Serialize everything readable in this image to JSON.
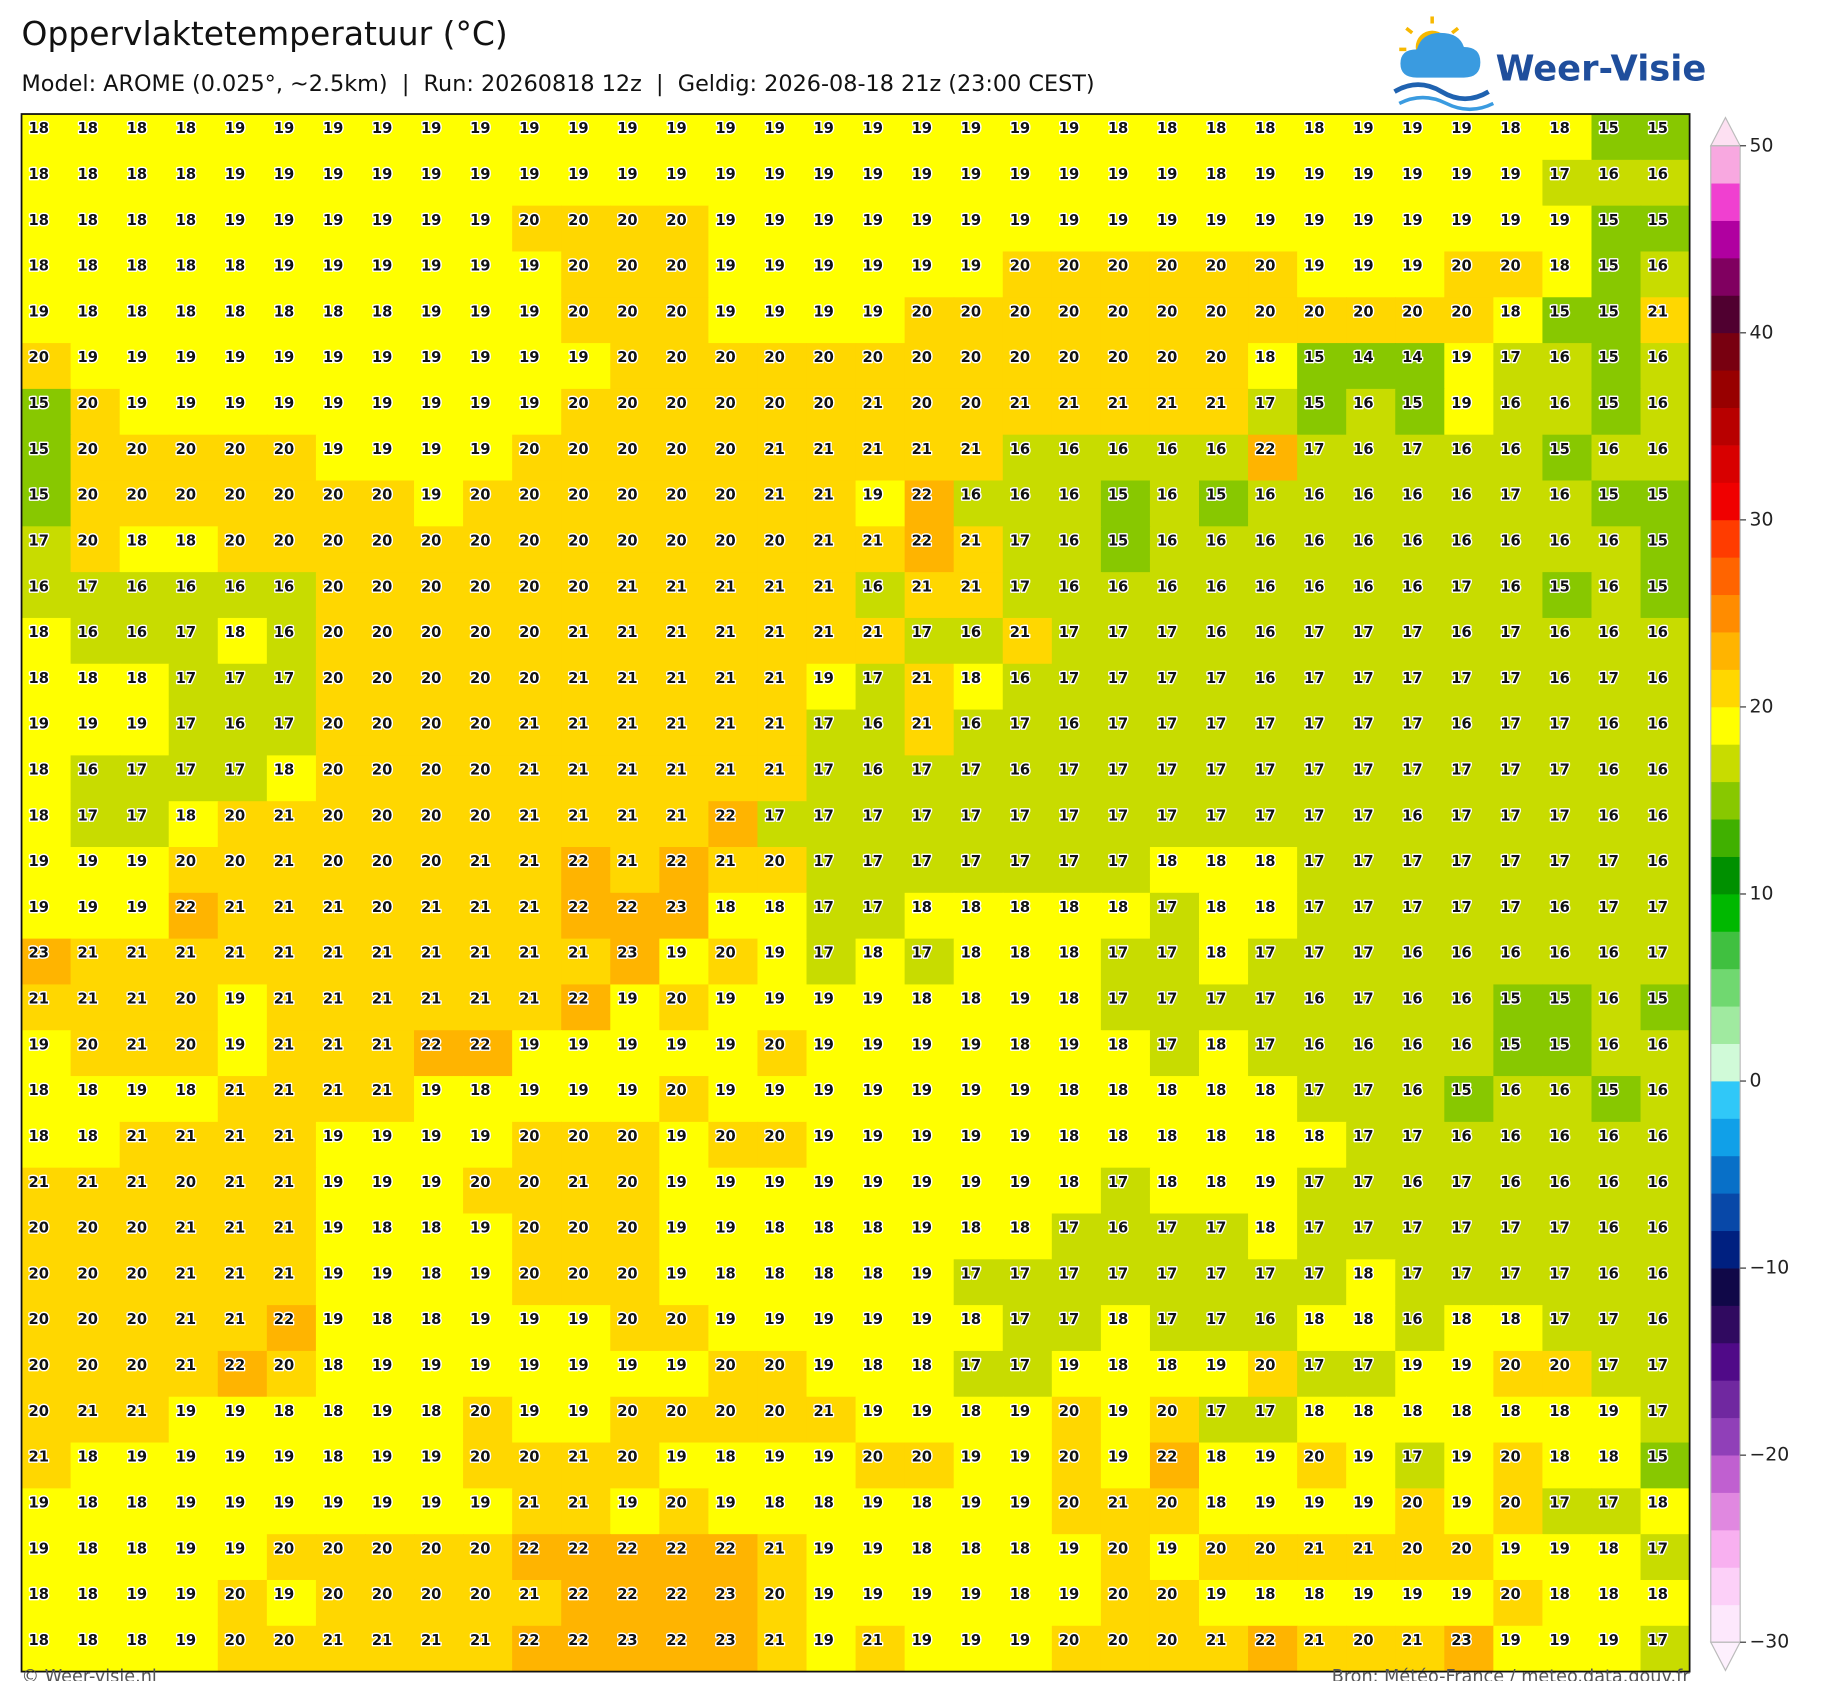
{
  "header": {
    "title": "Oppervlaktetemperatuur (°C)",
    "subtitle": "Model: AROME (0.025°, ~2.5km)  |  Run: 20260818 12z  |  Geldig: 2026-08-18 21z (23:00 CEST)"
  },
  "logo": "Weer-Visie",
  "map": {
    "type": "grid",
    "rows": [
      [
        18,
        18,
        18,
        18,
        19,
        19,
        19,
        19,
        19,
        19,
        19,
        19,
        19,
        19,
        19,
        19,
        19,
        19,
        19,
        19,
        19,
        19,
        18,
        18,
        18,
        18,
        18,
        19,
        19,
        19,
        18,
        18,
        15,
        15
      ],
      [
        18,
        18,
        18,
        18,
        19,
        19,
        19,
        19,
        19,
        19,
        19,
        19,
        19,
        19,
        19,
        19,
        19,
        19,
        19,
        19,
        19,
        19,
        19,
        19,
        18,
        19,
        19,
        19,
        19,
        19,
        19,
        17,
        16,
        16
      ],
      [
        18,
        18,
        18,
        18,
        19,
        19,
        19,
        19,
        19,
        19,
        20,
        20,
        20,
        20,
        19,
        19,
        19,
        19,
        19,
        19,
        19,
        19,
        19,
        19,
        19,
        19,
        19,
        19,
        19,
        19,
        19,
        19,
        15,
        15
      ],
      [
        18,
        18,
        18,
        18,
        18,
        19,
        19,
        19,
        19,
        19,
        19,
        20,
        20,
        20,
        19,
        19,
        19,
        19,
        19,
        19,
        20,
        20,
        20,
        20,
        20,
        20,
        19,
        19,
        19,
        20,
        20,
        18,
        15,
        16
      ],
      [
        19,
        18,
        18,
        18,
        18,
        18,
        18,
        18,
        19,
        19,
        19,
        20,
        20,
        20,
        19,
        19,
        19,
        19,
        20,
        20,
        20,
        20,
        20,
        20,
        20,
        20,
        20,
        20,
        20,
        20,
        18,
        15,
        15,
        21
      ],
      [
        20,
        19,
        19,
        19,
        19,
        19,
        19,
        19,
        19,
        19,
        19,
        19,
        20,
        20,
        20,
        20,
        20,
        20,
        20,
        20,
        20,
        20,
        20,
        20,
        20,
        18,
        15,
        14,
        14,
        19,
        17,
        16,
        15,
        16
      ],
      [
        15,
        20,
        19,
        19,
        19,
        19,
        19,
        19,
        19,
        19,
        19,
        20,
        20,
        20,
        20,
        20,
        20,
        21,
        20,
        20,
        21,
        21,
        21,
        21,
        21,
        17,
        15,
        16,
        15,
        19,
        16,
        16,
        15,
        16
      ],
      [
        15,
        20,
        20,
        20,
        20,
        20,
        19,
        19,
        19,
        19,
        20,
        20,
        20,
        20,
        20,
        21,
        21,
        21,
        21,
        21,
        16,
        16,
        16,
        16,
        16,
        22,
        17,
        16,
        17,
        16,
        16,
        15,
        16,
        16
      ],
      [
        15,
        20,
        20,
        20,
        20,
        20,
        20,
        20,
        19,
        20,
        20,
        20,
        20,
        20,
        20,
        21,
        21,
        19,
        22,
        16,
        16,
        16,
        15,
        16,
        15,
        16,
        16,
        16,
        16,
        16,
        17,
        16,
        15,
        15
      ],
      [
        17,
        20,
        18,
        18,
        20,
        20,
        20,
        20,
        20,
        20,
        20,
        20,
        20,
        20,
        20,
        20,
        21,
        21,
        22,
        21,
        17,
        16,
        15,
        16,
        16,
        16,
        16,
        16,
        16,
        16,
        16,
        16,
        16,
        15
      ],
      [
        16,
        17,
        16,
        16,
        16,
        16,
        20,
        20,
        20,
        20,
        20,
        20,
        21,
        21,
        21,
        21,
        21,
        16,
        21,
        21,
        17,
        16,
        16,
        16,
        16,
        16,
        16,
        16,
        16,
        17,
        16,
        15,
        16,
        15
      ],
      [
        18,
        16,
        16,
        17,
        18,
        16,
        20,
        20,
        20,
        20,
        20,
        21,
        21,
        21,
        21,
        21,
        21,
        21,
        17,
        16,
        21,
        17,
        17,
        17,
        16,
        16,
        17,
        17,
        17,
        16,
        17,
        16,
        16,
        16
      ],
      [
        18,
        18,
        18,
        17,
        17,
        17,
        20,
        20,
        20,
        20,
        20,
        21,
        21,
        21,
        21,
        21,
        19,
        17,
        21,
        18,
        16,
        17,
        17,
        17,
        17,
        16,
        17,
        17,
        17,
        17,
        17,
        16,
        17,
        16
      ],
      [
        19,
        19,
        19,
        17,
        16,
        17,
        20,
        20,
        20,
        20,
        21,
        21,
        21,
        21,
        21,
        21,
        17,
        16,
        21,
        16,
        17,
        16,
        17,
        17,
        17,
        17,
        17,
        17,
        17,
        16,
        17,
        17,
        16,
        16
      ],
      [
        18,
        16,
        17,
        17,
        17,
        18,
        20,
        20,
        20,
        20,
        21,
        21,
        21,
        21,
        21,
        21,
        17,
        16,
        17,
        17,
        16,
        17,
        17,
        17,
        17,
        17,
        17,
        17,
        17,
        17,
        17,
        17,
        16,
        16
      ],
      [
        18,
        17,
        17,
        18,
        20,
        21,
        20,
        20,
        20,
        20,
        21,
        21,
        21,
        21,
        22,
        17,
        17,
        17,
        17,
        17,
        17,
        17,
        17,
        17,
        17,
        17,
        17,
        17,
        16,
        17,
        17,
        17,
        16,
        16
      ],
      [
        19,
        19,
        19,
        20,
        20,
        21,
        20,
        20,
        20,
        21,
        21,
        22,
        21,
        22,
        21,
        20,
        17,
        17,
        17,
        17,
        17,
        17,
        17,
        18,
        18,
        18,
        17,
        17,
        17,
        17,
        17,
        17,
        17,
        16
      ],
      [
        19,
        19,
        19,
        22,
        21,
        21,
        21,
        20,
        21,
        21,
        21,
        22,
        22,
        23,
        18,
        18,
        17,
        17,
        18,
        18,
        18,
        18,
        18,
        17,
        18,
        18,
        17,
        17,
        17,
        17,
        17,
        16,
        17,
        17
      ],
      [
        23,
        21,
        21,
        21,
        21,
        21,
        21,
        21,
        21,
        21,
        21,
        21,
        23,
        19,
        20,
        19,
        17,
        18,
        17,
        18,
        18,
        18,
        17,
        17,
        18,
        17,
        17,
        17,
        16,
        16,
        16,
        16,
        16,
        17
      ],
      [
        21,
        21,
        21,
        20,
        19,
        21,
        21,
        21,
        21,
        21,
        21,
        22,
        19,
        20,
        19,
        19,
        19,
        19,
        18,
        18,
        19,
        18,
        17,
        17,
        17,
        17,
        16,
        17,
        16,
        16,
        15,
        15,
        16,
        15
      ],
      [
        19,
        20,
        21,
        20,
        19,
        21,
        21,
        21,
        22,
        22,
        19,
        19,
        19,
        19,
        19,
        20,
        19,
        19,
        19,
        19,
        18,
        19,
        18,
        17,
        18,
        17,
        16,
        16,
        16,
        16,
        15,
        15,
        16,
        16
      ],
      [
        18,
        18,
        19,
        18,
        21,
        21,
        21,
        21,
        19,
        18,
        19,
        19,
        19,
        20,
        19,
        19,
        19,
        19,
        19,
        19,
        19,
        18,
        18,
        18,
        18,
        18,
        17,
        17,
        16,
        15,
        16,
        16,
        15,
        16
      ],
      [
        18,
        18,
        21,
        21,
        21,
        21,
        19,
        19,
        19,
        19,
        20,
        20,
        20,
        19,
        20,
        20,
        19,
        19,
        19,
        19,
        19,
        18,
        18,
        18,
        18,
        18,
        18,
        17,
        17,
        16,
        16,
        16,
        16,
        16
      ],
      [
        21,
        21,
        21,
        20,
        21,
        21,
        19,
        19,
        19,
        20,
        20,
        21,
        20,
        19,
        19,
        19,
        19,
        19,
        19,
        19,
        19,
        18,
        17,
        18,
        18,
        19,
        17,
        17,
        16,
        17,
        16,
        16,
        16,
        16
      ],
      [
        20,
        20,
        20,
        21,
        21,
        21,
        19,
        18,
        18,
        19,
        20,
        20,
        20,
        19,
        19,
        18,
        18,
        18,
        19,
        18,
        18,
        17,
        16,
        17,
        17,
        18,
        17,
        17,
        17,
        17,
        17,
        17,
        16,
        16
      ],
      [
        20,
        20,
        20,
        21,
        21,
        21,
        19,
        19,
        18,
        19,
        20,
        20,
        20,
        19,
        18,
        18,
        18,
        18,
        19,
        17,
        17,
        17,
        17,
        17,
        17,
        17,
        17,
        18,
        17,
        17,
        17,
        17,
        16,
        16
      ],
      [
        20,
        20,
        20,
        21,
        21,
        22,
        19,
        18,
        18,
        19,
        19,
        19,
        20,
        20,
        19,
        19,
        19,
        19,
        19,
        18,
        17,
        17,
        18,
        17,
        17,
        16,
        18,
        18,
        16,
        18,
        18,
        17,
        17,
        16
      ],
      [
        20,
        20,
        20,
        21,
        22,
        20,
        18,
        19,
        19,
        19,
        19,
        19,
        19,
        19,
        20,
        20,
        19,
        18,
        18,
        17,
        17,
        19,
        18,
        18,
        19,
        20,
        17,
        17,
        19,
        19,
        20,
        20,
        17,
        17
      ],
      [
        20,
        21,
        21,
        19,
        19,
        18,
        18,
        19,
        18,
        20,
        19,
        19,
        20,
        20,
        20,
        20,
        21,
        19,
        19,
        18,
        19,
        20,
        19,
        20,
        17,
        17,
        18,
        18,
        18,
        18,
        18,
        18,
        19,
        17
      ],
      [
        21,
        18,
        19,
        19,
        19,
        19,
        18,
        19,
        19,
        20,
        20,
        21,
        20,
        19,
        18,
        19,
        19,
        20,
        20,
        19,
        19,
        20,
        19,
        22,
        18,
        19,
        20,
        19,
        17,
        19,
        20,
        18,
        18,
        15
      ],
      [
        19,
        18,
        18,
        19,
        19,
        19,
        19,
        19,
        19,
        19,
        21,
        21,
        19,
        20,
        19,
        18,
        18,
        19,
        18,
        19,
        19,
        20,
        21,
        20,
        18,
        19,
        19,
        19,
        20,
        19,
        20,
        17,
        17,
        18
      ],
      [
        19,
        18,
        18,
        19,
        19,
        20,
        20,
        20,
        20,
        20,
        22,
        22,
        22,
        22,
        22,
        21,
        19,
        19,
        18,
        18,
        18,
        19,
        20,
        19,
        20,
        20,
        21,
        21,
        20,
        20,
        19,
        19,
        18,
        17
      ],
      [
        18,
        18,
        19,
        19,
        20,
        19,
        20,
        20,
        20,
        20,
        21,
        22,
        22,
        22,
        23,
        20,
        19,
        19,
        19,
        19,
        18,
        19,
        20,
        20,
        19,
        18,
        18,
        19,
        19,
        19,
        20,
        18,
        18,
        18
      ],
      [
        18,
        18,
        18,
        19,
        20,
        20,
        21,
        21,
        21,
        21,
        22,
        22,
        23,
        22,
        23,
        21,
        19,
        21,
        19,
        19,
        19,
        20,
        20,
        20,
        21,
        22,
        21,
        20,
        21,
        23,
        19,
        19,
        19,
        17
      ]
    ]
  },
  "colorbar": {
    "ylim": [
      -30,
      50
    ],
    "ticks": [
      50,
      40,
      30,
      20,
      10,
      0,
      {
        "value": -10,
        "label": "−10"
      },
      {
        "value": -20,
        "label": "−20"
      },
      {
        "value": -30,
        "label": "−30"
      }
    ],
    "bins": [
      -30,
      -28,
      -26,
      -24,
      -22,
      -20,
      -18,
      -16,
      -14,
      -12,
      -10,
      -8,
      -6,
      -4,
      -2,
      0,
      2,
      4,
      6,
      8,
      10,
      12,
      14,
      16,
      18,
      20,
      22,
      24,
      26,
      28,
      30,
      32,
      34,
      36,
      38,
      40,
      42,
      44,
      46,
      48,
      50
    ],
    "colors": [
      "#fde8fc",
      "#fcd0f8",
      "#f8b0f0",
      "#e088e0",
      "#c060d0",
      "#9040b8",
      "#7028a0",
      "#500a88",
      "#300a60",
      "#100848",
      "#002080",
      "#0848a8",
      "#0870c8",
      "#10a0e8",
      "#30c8f8",
      "#d0fad8",
      "#a0eaa0",
      "#70d870",
      "#40c040",
      "#00b800",
      "#009000",
      "#40b000",
      "#88c800",
      "#c8dc00",
      "#ffff00",
      "#ffd700",
      "#ffb400",
      "#ff8c00",
      "#ff6400",
      "#ff3c00",
      "#f00000",
      "#d80000",
      "#b80000",
      "#980000",
      "#780010",
      "#500030",
      "#800060",
      "#b000a0",
      "#f040d0",
      "#f8a8e0"
    ],
    "over": "#fde0f2",
    "under": "#fdf0fd"
  },
  "footer": {
    "left": "© Weer-visie.nl",
    "right": "Bron: Météo-France / meteo.data.gouv.fr"
  }
}
